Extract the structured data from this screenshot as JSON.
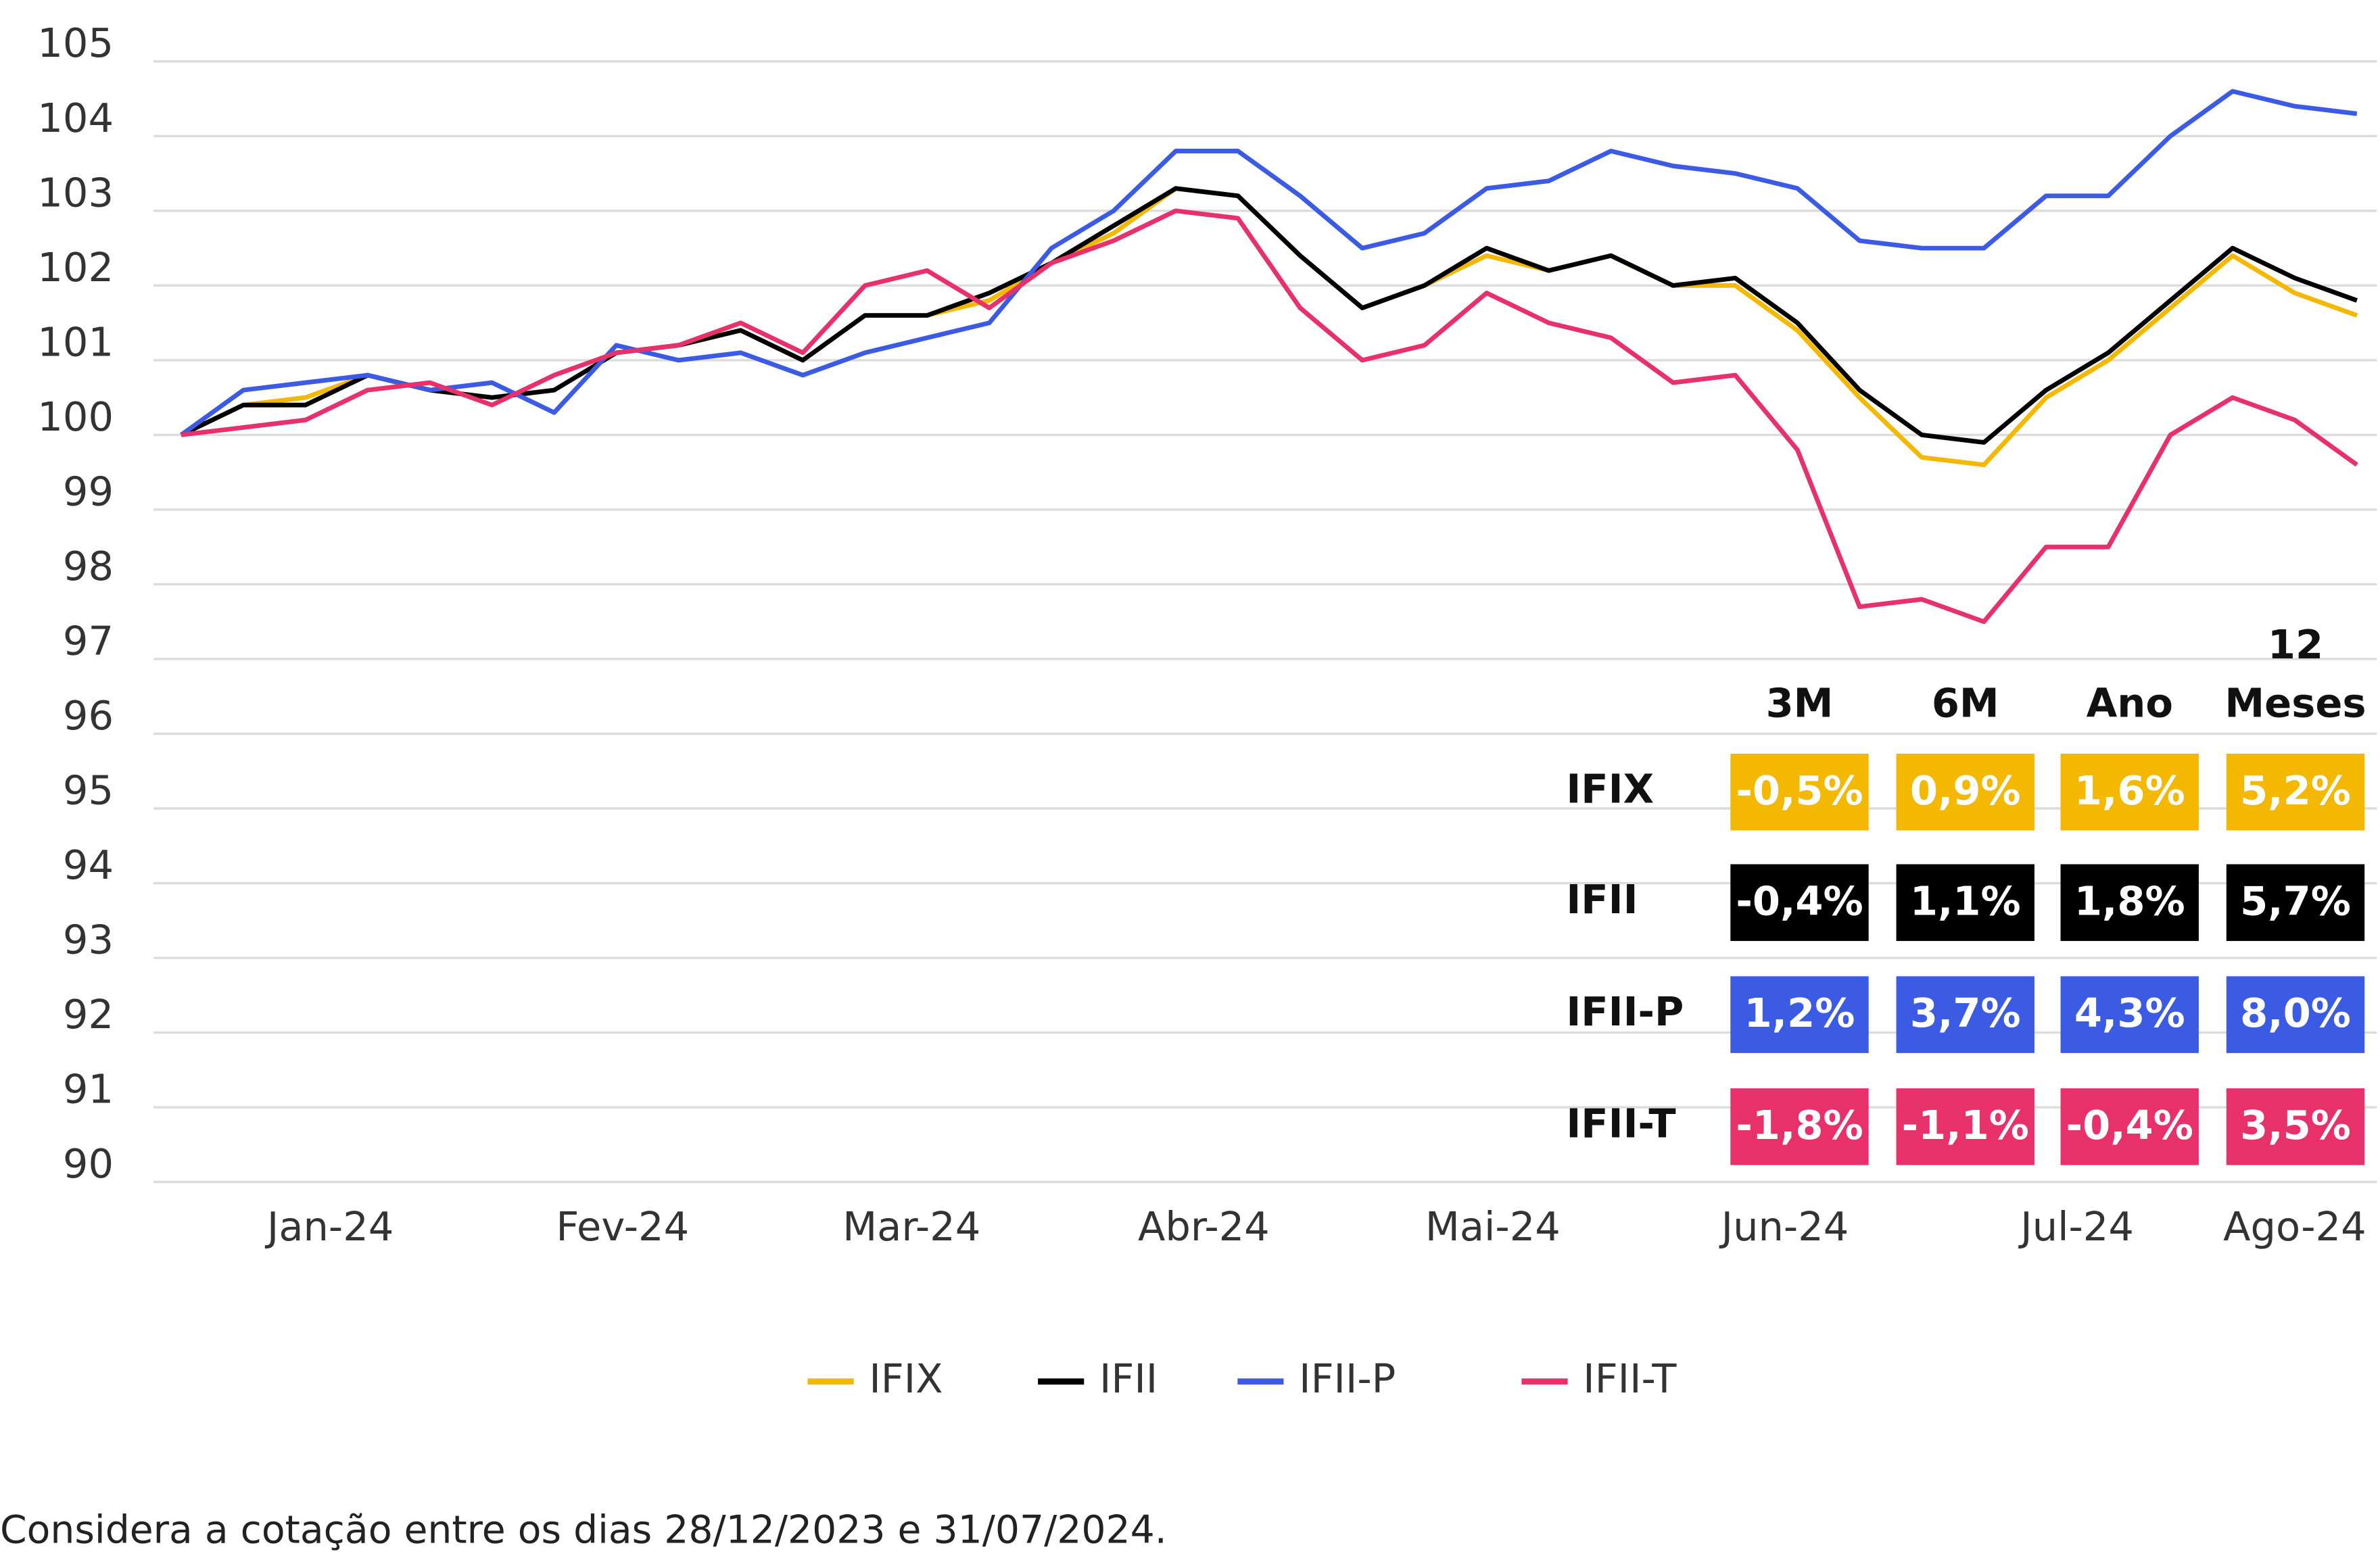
{
  "chart_data": {
    "type": "line",
    "x": [
      0,
      2,
      4,
      6,
      8,
      10,
      12,
      14,
      16,
      18,
      20,
      22,
      24,
      26,
      28,
      30,
      32,
      34,
      36,
      38,
      40,
      42,
      44,
      46,
      48,
      50,
      52,
      54,
      56,
      58,
      60,
      62,
      64,
      66,
      68,
      70
    ],
    "xlim": [
      0,
      70
    ],
    "xticks": [
      {
        "value": 4.8,
        "label": "Jan-24"
      },
      {
        "value": 14.2,
        "label": "Fev-24"
      },
      {
        "value": 23.5,
        "label": "Mar-24"
      },
      {
        "value": 32.9,
        "label": "Abr-24"
      },
      {
        "value": 42.2,
        "label": "Mai-24"
      },
      {
        "value": 51.6,
        "label": "Jun-24"
      },
      {
        "value": 61,
        "label": "Jul-24"
      },
      {
        "value": 68,
        "label": "Ago-24"
      }
    ],
    "ylim": [
      90,
      105
    ],
    "yticks": [
      90,
      91,
      92,
      93,
      94,
      95,
      96,
      97,
      98,
      99,
      100,
      101,
      102,
      103,
      104,
      105
    ],
    "grid": true,
    "series": [
      {
        "name": "IFIX",
        "color": "#f5b800",
        "values": [
          100.0,
          100.4,
          100.5,
          100.8,
          100.6,
          100.5,
          100.6,
          101.1,
          101.2,
          101.4,
          101.0,
          101.6,
          101.6,
          101.8,
          102.3,
          102.7,
          103.3,
          103.2,
          102.4,
          101.7,
          102.0,
          102.4,
          102.2,
          102.4,
          102.0,
          102.0,
          101.4,
          100.5,
          99.7,
          99.6,
          100.5,
          101.0,
          101.7,
          102.4,
          101.9,
          101.6
        ]
      },
      {
        "name": "IFII",
        "color": "#000000",
        "values": [
          100.0,
          100.4,
          100.4,
          100.8,
          100.6,
          100.5,
          100.6,
          101.1,
          101.2,
          101.4,
          101.0,
          101.6,
          101.6,
          101.9,
          102.3,
          102.8,
          103.3,
          103.2,
          102.4,
          101.7,
          102.0,
          102.5,
          102.2,
          102.4,
          102.0,
          102.1,
          101.5,
          100.6,
          100.0,
          99.9,
          100.6,
          101.1,
          101.8,
          102.5,
          102.1,
          101.8
        ]
      },
      {
        "name": "IFII-P",
        "color": "#3b5be5",
        "values": [
          100.0,
          100.6,
          100.7,
          100.8,
          100.6,
          100.7,
          100.3,
          101.2,
          101.0,
          101.1,
          100.8,
          101.1,
          101.3,
          101.5,
          102.5,
          103.0,
          103.8,
          103.8,
          103.2,
          102.5,
          102.7,
          103.3,
          103.4,
          103.8,
          103.6,
          103.5,
          103.3,
          102.6,
          102.5,
          102.5,
          103.2,
          103.2,
          104.0,
          104.6,
          104.4,
          104.3
        ]
      },
      {
        "name": "IFII-T",
        "color": "#e8306a",
        "values": [
          100.0,
          100.1,
          100.2,
          100.6,
          100.7,
          100.4,
          100.8,
          101.1,
          101.2,
          101.5,
          101.1,
          102.0,
          102.2,
          101.7,
          102.3,
          102.6,
          103.0,
          102.9,
          101.7,
          101.0,
          101.2,
          101.9,
          101.5,
          101.3,
          100.7,
          100.8,
          99.8,
          97.7,
          97.8,
          97.5,
          98.5,
          98.5,
          100.0,
          100.5,
          100.2,
          99.6
        ]
      }
    ],
    "table": {
      "columns": [
        "3M",
        "6M",
        "Ano",
        "12 Meses"
      ],
      "rows": [
        {
          "name": "IFIX",
          "cells": [
            "-0,5%",
            "0,9%",
            "1,6%",
            "5,2%"
          ]
        },
        {
          "name": "IFII",
          "cells": [
            "-0,4%",
            "1,1%",
            "1,8%",
            "5,7%"
          ]
        },
        {
          "name": "IFII-P",
          "cells": [
            "1,2%",
            "3,7%",
            "4,3%",
            "8,0%"
          ]
        },
        {
          "name": "IFII-T",
          "cells": [
            "-1,8%",
            "-1,1%",
            "-0,4%",
            "3,5%"
          ]
        }
      ]
    },
    "footnote": "Considera a cotação entre os dias 28/12/2023 e 31/07/2024."
  }
}
